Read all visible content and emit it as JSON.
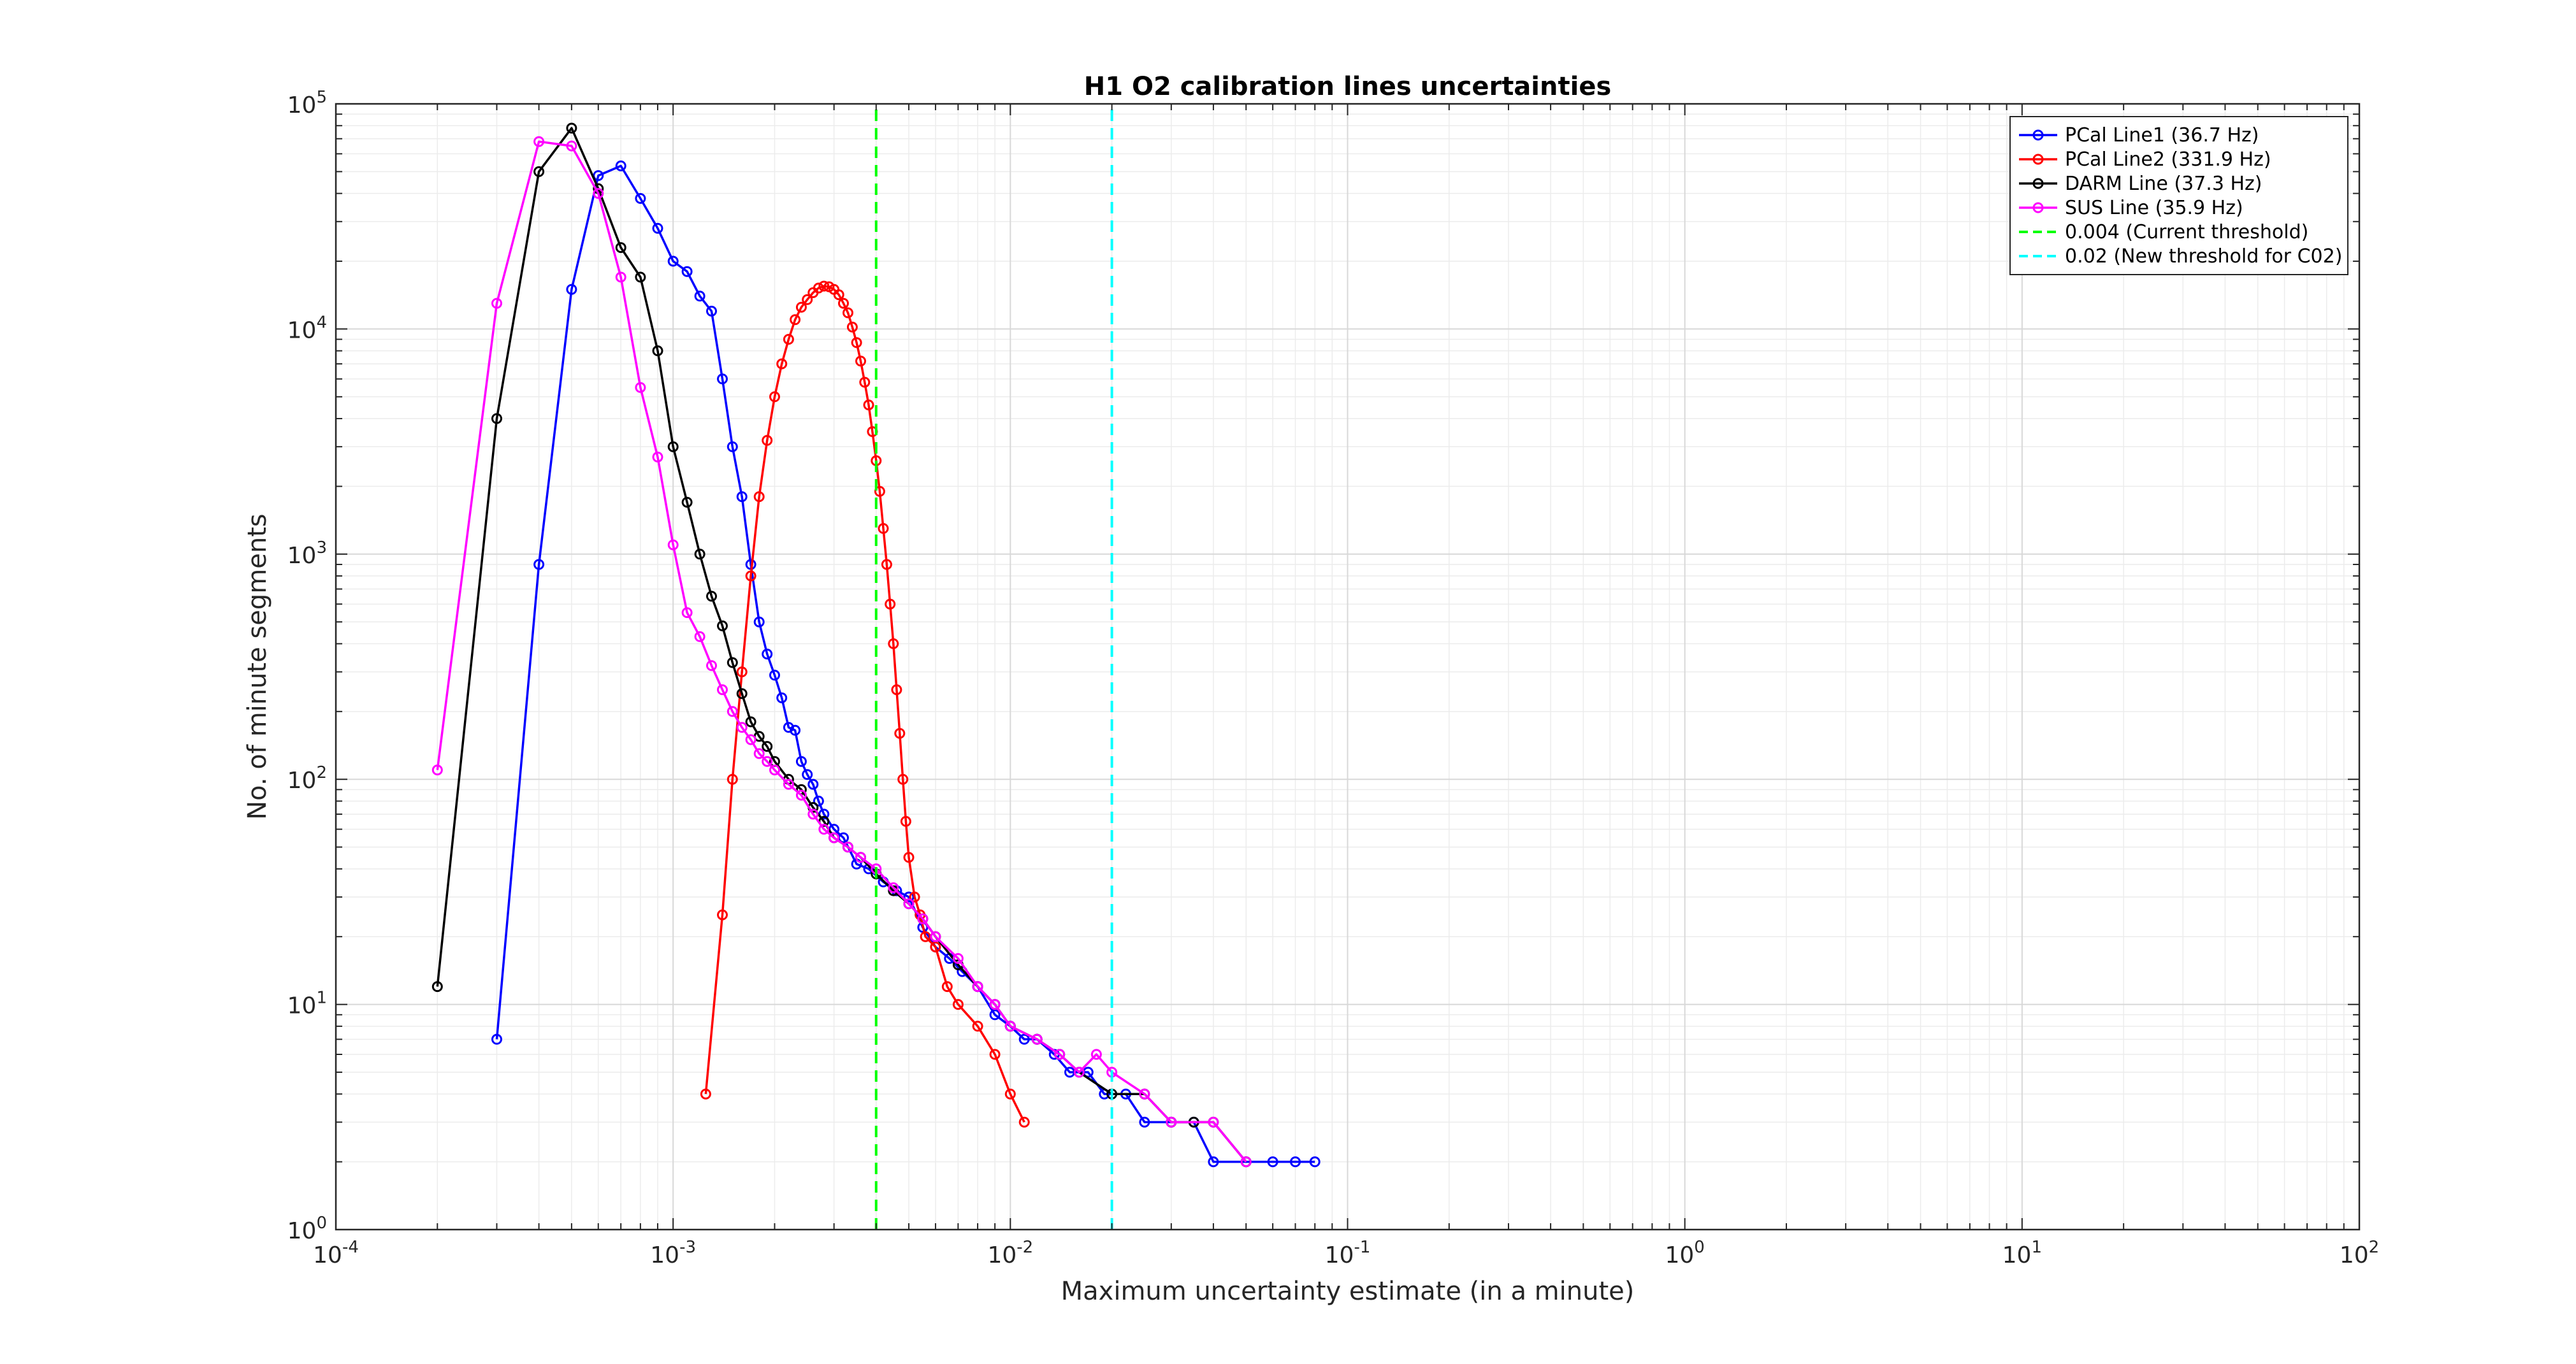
{
  "chart_data": {
    "type": "line",
    "title": "H1 O2 calibration lines uncertainties",
    "xlabel": "Maximum uncertainty estimate (in a minute)",
    "ylabel": "No. of minute segments",
    "xscale": "log",
    "yscale": "log",
    "xlim": [
      0.0001,
      100
    ],
    "ylim": [
      1,
      100000
    ],
    "grid": true,
    "legend_position": "top-right",
    "x_ticks": [
      {
        "value": 0.0001,
        "base": "10",
        "exp": "-4"
      },
      {
        "value": 0.001,
        "base": "10",
        "exp": "-3"
      },
      {
        "value": 0.01,
        "base": "10",
        "exp": "-2"
      },
      {
        "value": 0.1,
        "base": "10",
        "exp": "-1"
      },
      {
        "value": 1,
        "base": "10",
        "exp": "0"
      },
      {
        "value": 10,
        "base": "10",
        "exp": "1"
      },
      {
        "value": 100,
        "base": "10",
        "exp": "2"
      }
    ],
    "y_ticks": [
      {
        "value": 1,
        "base": "10",
        "exp": "0"
      },
      {
        "value": 10,
        "base": "10",
        "exp": "1"
      },
      {
        "value": 100,
        "base": "10",
        "exp": "2"
      },
      {
        "value": 1000,
        "base": "10",
        "exp": "3"
      },
      {
        "value": 10000,
        "base": "10",
        "exp": "4"
      },
      {
        "value": 100000,
        "base": "10",
        "exp": "5"
      }
    ],
    "series": [
      {
        "name": "PCal Line1 (36.7 Hz)",
        "color": "#0000ff",
        "style": "solid-marker",
        "x": [
          0.0003,
          0.0004,
          0.0005,
          0.0006,
          0.0007,
          0.0008,
          0.0009,
          0.001,
          0.0011,
          0.0012,
          0.0013,
          0.0014,
          0.0015,
          0.0016,
          0.0017,
          0.0018,
          0.0019,
          0.002,
          0.0021,
          0.0022,
          0.0023,
          0.0024,
          0.0025,
          0.0026,
          0.0027,
          0.0028,
          0.003,
          0.0032,
          0.0035,
          0.0038,
          0.0042,
          0.0046,
          0.005,
          0.0055,
          0.006,
          0.0066,
          0.0072,
          0.008,
          0.009,
          0.01,
          0.011,
          0.012,
          0.0135,
          0.015,
          0.017,
          0.019,
          0.022,
          0.025,
          0.03,
          0.035,
          0.04,
          0.05,
          0.06,
          0.07,
          0.08
        ],
        "y": [
          7,
          900,
          15000,
          48000,
          53000,
          38000,
          28000,
          20000,
          18000,
          14000,
          12000,
          6000,
          3000,
          1800,
          900,
          500,
          360,
          290,
          230,
          170,
          165,
          120,
          105,
          95,
          80,
          70,
          60,
          55,
          42,
          40,
          35,
          32,
          30,
          22,
          18,
          16,
          14,
          12,
          9,
          8,
          7,
          7,
          6,
          5,
          5,
          4,
          4,
          3,
          3,
          3,
          2,
          2,
          2,
          2,
          2
        ]
      },
      {
        "name": "PCal Line2 (331.9 Hz)",
        "color": "#ff0000",
        "style": "solid-marker",
        "x": [
          0.00125,
          0.0014,
          0.0015,
          0.0016,
          0.0017,
          0.0018,
          0.0019,
          0.002,
          0.0021,
          0.0022,
          0.0023,
          0.0024,
          0.0025,
          0.0026,
          0.0027,
          0.0028,
          0.0029,
          0.003,
          0.0031,
          0.0032,
          0.0033,
          0.0034,
          0.0035,
          0.0036,
          0.0037,
          0.0038,
          0.0039,
          0.004,
          0.0041,
          0.0042,
          0.0043,
          0.0044,
          0.0045,
          0.0046,
          0.0047,
          0.0048,
          0.0049,
          0.005,
          0.0052,
          0.0054,
          0.0056,
          0.006,
          0.0065,
          0.007,
          0.008,
          0.009,
          0.01,
          0.011
        ],
        "y": [
          4,
          25,
          100,
          300,
          800,
          1800,
          3200,
          5000,
          7000,
          9000,
          11000,
          12500,
          13500,
          14500,
          15200,
          15500,
          15400,
          15000,
          14200,
          13000,
          11800,
          10200,
          8700,
          7200,
          5800,
          4600,
          3500,
          2600,
          1900,
          1300,
          900,
          600,
          400,
          250,
          160,
          100,
          65,
          45,
          30,
          25,
          20,
          18,
          12,
          10,
          8,
          6,
          4,
          3
        ]
      },
      {
        "name": "DARM Line (37.3 Hz)",
        "color": "#000000",
        "style": "solid-marker",
        "x": [
          0.0002,
          0.0003,
          0.0004,
          0.0005,
          0.0006,
          0.0007,
          0.0008,
          0.0009,
          0.001,
          0.0011,
          0.0012,
          0.0013,
          0.0014,
          0.0015,
          0.0016,
          0.0017,
          0.0018,
          0.0019,
          0.002,
          0.0022,
          0.0024,
          0.0026,
          0.0028,
          0.003,
          0.0033,
          0.0036,
          0.004,
          0.0045,
          0.005,
          0.0055,
          0.006,
          0.007,
          0.008,
          0.009,
          0.01,
          0.012,
          0.014,
          0.016,
          0.02,
          0.025,
          0.03,
          0.035,
          0.04,
          0.05
        ],
        "y": [
          12,
          4000,
          50000,
          78000,
          42000,
          23000,
          17000,
          8000,
          3000,
          1700,
          1000,
          650,
          480,
          330,
          240,
          180,
          155,
          140,
          120,
          100,
          90,
          75,
          65,
          55,
          50,
          45,
          38,
          32,
          28,
          24,
          20,
          15,
          12,
          10,
          8,
          7,
          6,
          5,
          4,
          4,
          3,
          3,
          3,
          2
        ]
      },
      {
        "name": "SUS Line (35.9 Hz)",
        "color": "#ff00ff",
        "style": "solid-marker",
        "x": [
          0.0002,
          0.0003,
          0.0004,
          0.0005,
          0.0006,
          0.0007,
          0.0008,
          0.0009,
          0.001,
          0.0011,
          0.0012,
          0.0013,
          0.0014,
          0.0015,
          0.0016,
          0.0017,
          0.0018,
          0.0019,
          0.002,
          0.0022,
          0.0024,
          0.0026,
          0.0028,
          0.003,
          0.0033,
          0.0036,
          0.004,
          0.0045,
          0.005,
          0.0055,
          0.006,
          0.007,
          0.008,
          0.009,
          0.01,
          0.012,
          0.014,
          0.016,
          0.018,
          0.02,
          0.025,
          0.03,
          0.04,
          0.05
        ],
        "y": [
          110,
          13000,
          68000,
          65000,
          40000,
          17000,
          5500,
          2700,
          1100,
          550,
          430,
          320,
          250,
          200,
          170,
          150,
          130,
          120,
          110,
          95,
          85,
          70,
          60,
          55,
          50,
          45,
          40,
          33,
          28,
          24,
          20,
          16,
          12,
          10,
          8,
          7,
          6,
          5,
          6,
          5,
          4,
          3,
          3,
          2
        ]
      },
      {
        "name": "0.004 (Current threshold)",
        "color": "#00ff00",
        "style": "dashed",
        "x": [
          0.004,
          0.004
        ],
        "y": [
          1,
          100000
        ]
      },
      {
        "name": "0.02 (New threshold for C02)",
        "color": "#00ffff",
        "style": "dashed",
        "x": [
          0.02,
          0.02
        ],
        "y": [
          1,
          100000
        ]
      }
    ]
  }
}
